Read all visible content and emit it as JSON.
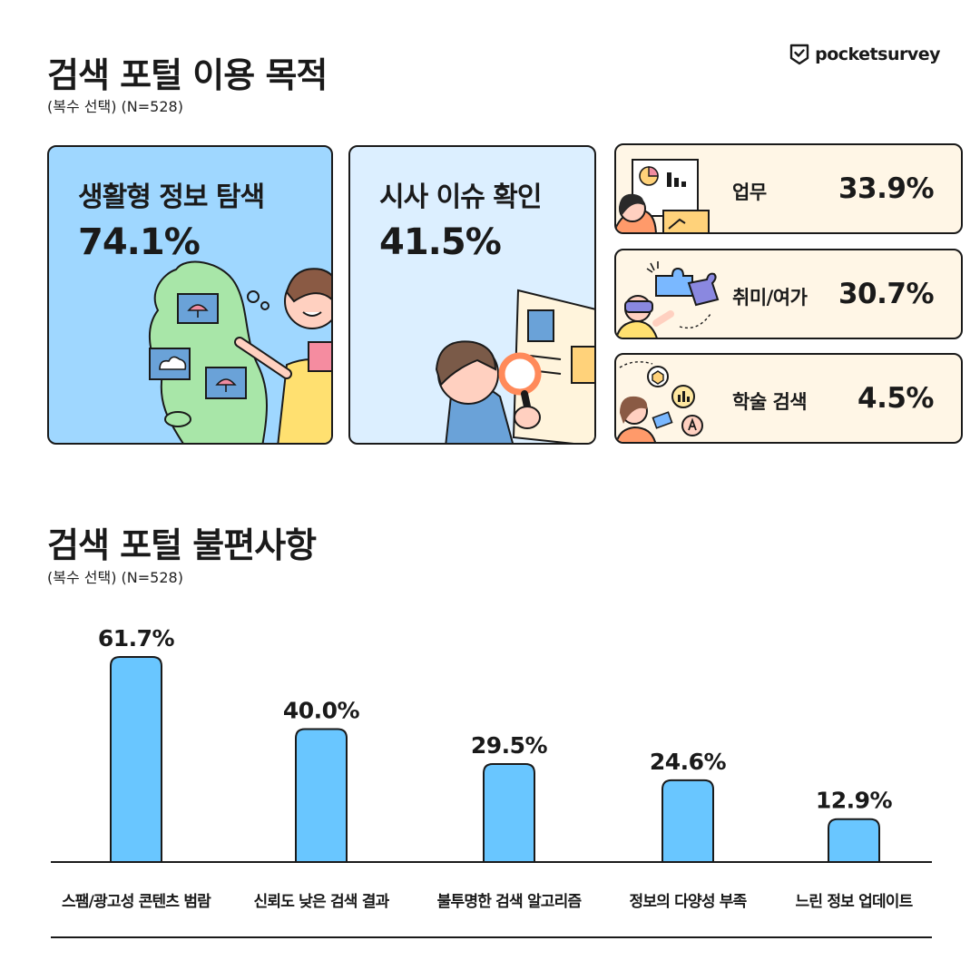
{
  "header": {
    "title": "검색 포털 이용 목적",
    "subtitle": "(복수 선택) (N=528)",
    "brand": "pocketsurvey"
  },
  "purposes": {
    "life": {
      "label": "생활형 정보 탐색",
      "value": "74.1%"
    },
    "news": {
      "label": "시사 이슈 확인",
      "value": "41.5%"
    },
    "work": {
      "label": "업무",
      "value": "33.9%"
    },
    "hobby": {
      "label": "취미/여가",
      "value": "30.7%"
    },
    "academic": {
      "label": "학술 검색",
      "value": "4.5%"
    }
  },
  "section2": {
    "title": "검색 포털 불편사항",
    "subtitle": "(복수 선택) (N=528)"
  },
  "colors": {
    "bar": "#69c6ff",
    "card_blue": "#9fd7ff",
    "card_lightblue": "#dcefff",
    "card_cream": "#fff6e6",
    "outline": "#1a1a1a"
  },
  "chart_data": {
    "type": "bar",
    "categories": [
      "스팸/광고성 콘텐츠 범람",
      "신뢰도 낮은 검색 결과",
      "불투명한 검색 알고리즘",
      "정보의 다양성 부족",
      "느린 정보 업데이트"
    ],
    "values": [
      61.7,
      40.0,
      29.5,
      24.6,
      12.9
    ],
    "value_labels": [
      "61.7%",
      "40.0%",
      "29.5%",
      "24.6%",
      "12.9%"
    ],
    "ylim": [
      0,
      65
    ],
    "grid": false,
    "legend": "none"
  }
}
